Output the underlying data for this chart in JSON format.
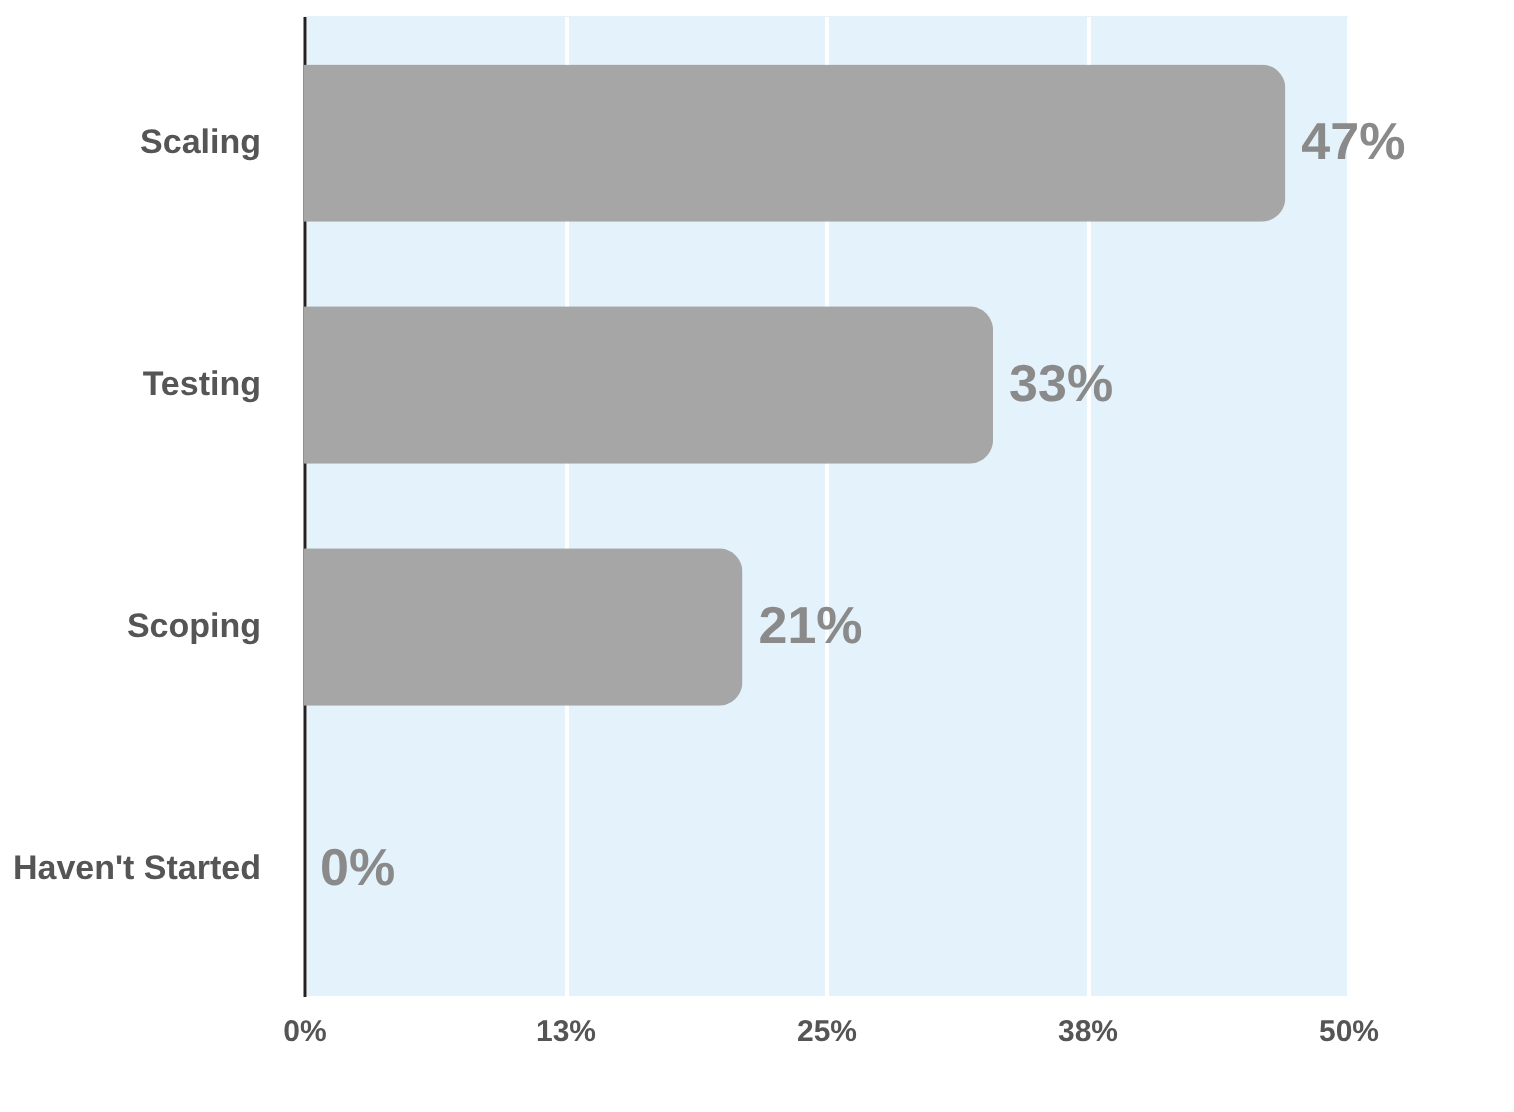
{
  "chart_data": {
    "type": "bar",
    "orientation": "horizontal",
    "categories": [
      "Scaling",
      "Testing",
      "Scoping",
      "Haven't Started"
    ],
    "values": [
      47,
      33,
      21,
      0
    ],
    "value_labels": [
      "47%",
      "33%",
      "21%",
      "0%"
    ],
    "color": "#a6a6a6",
    "xlim": [
      0,
      50
    ],
    "xticks": [
      {
        "value": 0,
        "label": "0%"
      },
      {
        "value": 12.5,
        "label": "13%"
      },
      {
        "value": 25,
        "label": "25%"
      },
      {
        "value": 37.5,
        "label": "38%"
      },
      {
        "value": 50,
        "label": "50%"
      }
    ],
    "grid": "x"
  }
}
